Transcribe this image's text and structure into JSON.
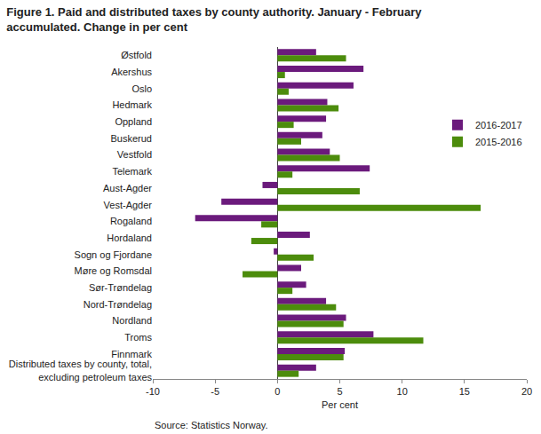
{
  "chart_data": {
    "type": "bar",
    "orientation": "horizontal",
    "title": "Figure 1. Paid and distributed taxes by county authority. January - February accumulated. Change in per cent",
    "xlabel": "Per cent",
    "source": "Source: Statistics Norway.",
    "categories": [
      "Østfold",
      "Akershus",
      "Oslo",
      "Hedmark",
      "Oppland",
      "Buskerud",
      "Vestfold",
      "Telemark",
      "Aust-Agder",
      "Vest-Agder",
      "Rogaland",
      "Hordaland",
      "Sogn og Fjordane",
      "Møre og Romsdal",
      "Sør-Trøndelag",
      "Nord-Trøndelag",
      "Nordland",
      "Troms",
      "Finnmark",
      "Distributed taxes by county, total, excluding petroleum taxes"
    ],
    "series": [
      {
        "name": "2016-2017",
        "color": "#6b1a7c",
        "values": [
          3.1,
          6.9,
          6.1,
          4.0,
          3.9,
          3.6,
          4.2,
          7.4,
          -1.2,
          -4.5,
          -6.6,
          2.6,
          -0.3,
          1.9,
          2.3,
          3.9,
          5.5,
          7.7,
          5.4,
          3.1
        ]
      },
      {
        "name": "2015-2016",
        "color": "#4c8c0c",
        "values": [
          5.5,
          0.6,
          0.9,
          4.9,
          1.3,
          1.9,
          5.0,
          1.2,
          6.6,
          16.3,
          -1.3,
          -2.1,
          2.9,
          -2.8,
          1.2,
          4.7,
          5.3,
          11.7,
          5.3,
          1.7
        ]
      }
    ],
    "xlim": [
      -10,
      20
    ],
    "xticks": [
      -10,
      -5,
      0,
      5,
      10,
      15,
      20
    ],
    "grid": false,
    "legend": "right"
  }
}
